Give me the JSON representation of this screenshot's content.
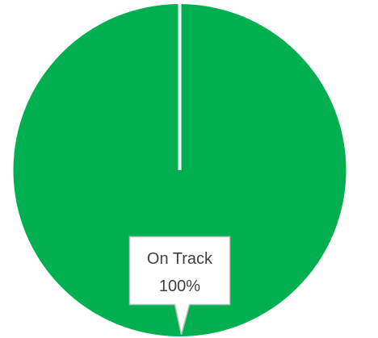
{
  "chart_data": {
    "type": "pie",
    "categories": [
      "On Track"
    ],
    "values": [
      100
    ],
    "value_labels": [
      "100%"
    ],
    "colors": [
      "#00b050"
    ]
  }
}
